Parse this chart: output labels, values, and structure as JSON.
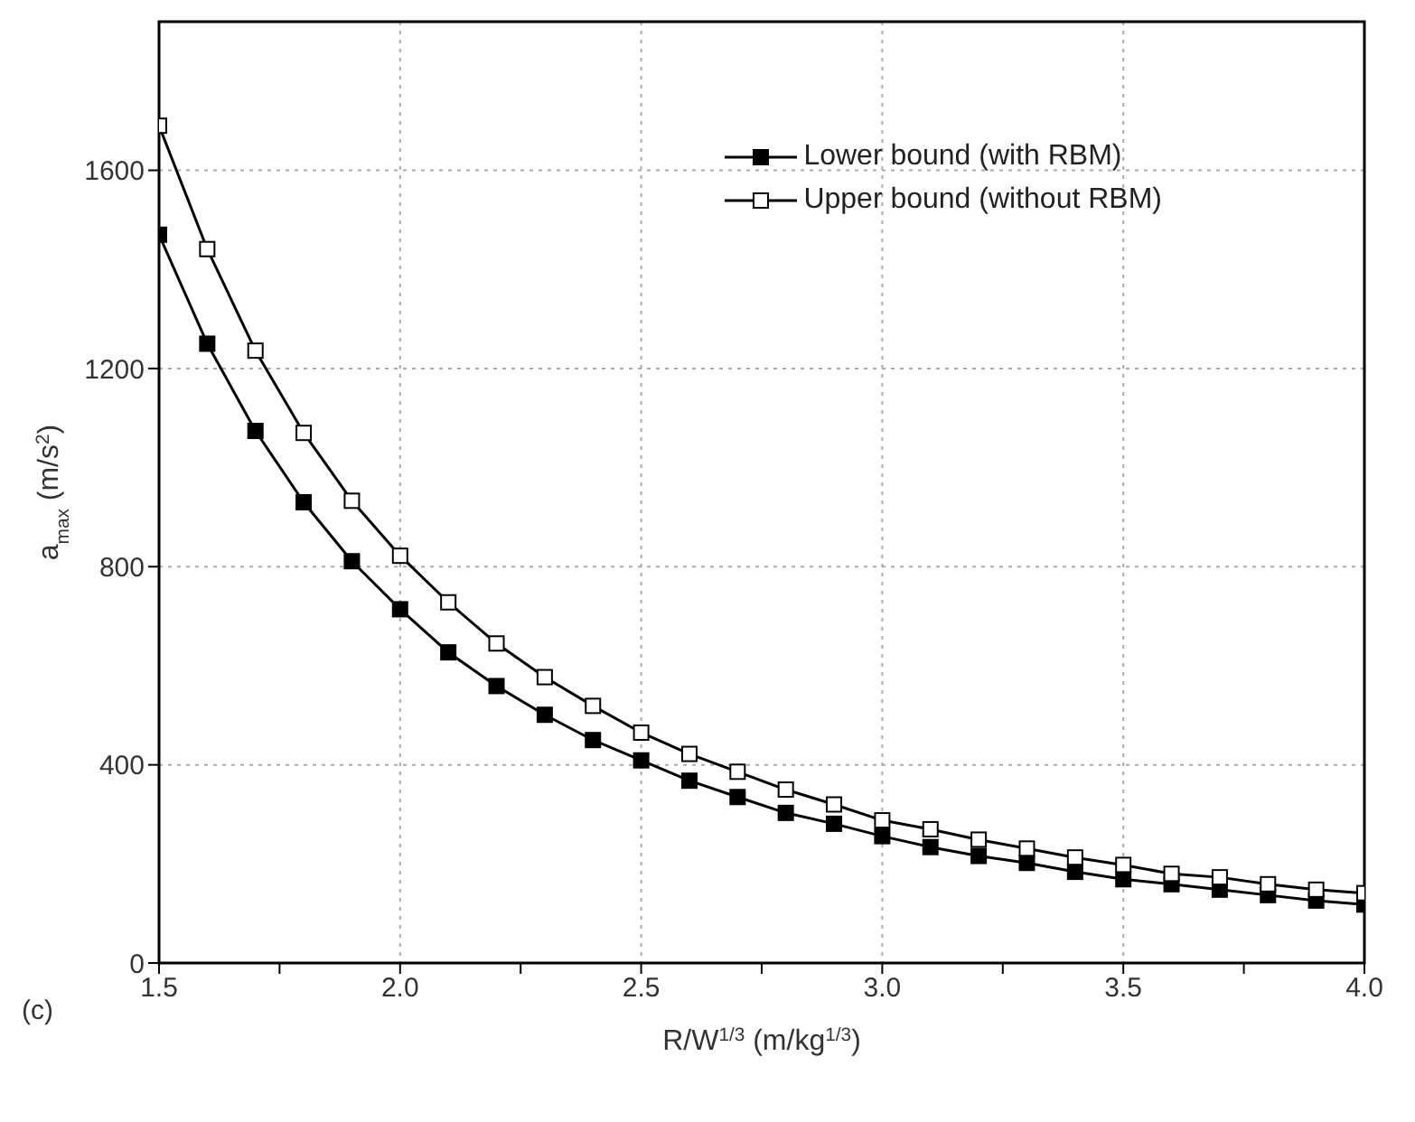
{
  "chart_data": {
    "type": "line",
    "xlabel": "R/W$^{1/3}$ (m/kg$^{1/3}$)",
    "ylabel": "a$_{max}$ (m/s$^{2}$)",
    "annotations": [
      "(c)"
    ],
    "x": [
      1.5,
      1.6,
      1.7,
      1.8,
      1.9,
      2.0,
      2.1,
      2.2,
      2.3,
      2.4,
      2.5,
      2.6,
      2.7,
      2.8,
      2.9,
      3.0,
      3.1,
      3.2,
      3.3,
      3.4,
      3.5,
      3.6,
      3.7,
      3.8,
      3.9,
      4.0
    ],
    "series": [
      {
        "name": "Lower bound (with RBM)",
        "color": "#000000",
        "values": [
          1470,
          1250,
          1074,
          930,
          811,
          714,
          627,
          559,
          501,
          450,
          409,
          368,
          335,
          303,
          281,
          256,
          234,
          216,
          202,
          184,
          169,
          159,
          148,
          137,
          126,
          118
        ]
      },
      {
        "name": "Upper bound (without RBM)",
        "color": "#000000",
        "values": [
          1690,
          1441,
          1236,
          1070,
          933,
          822,
          728,
          645,
          577,
          519,
          465,
          422,
          386,
          350,
          320,
          288,
          270,
          249,
          231,
          213,
          198,
          180,
          173,
          159,
          148,
          141
        ]
      }
    ],
    "xlim": [
      1.5,
      4.0
    ],
    "xticks": [
      {
        "value": 1.5,
        "label": "1.5"
      },
      {
        "value": 1.75,
        "label": null
      },
      {
        "value": 2.0,
        "label": "2.0"
      },
      {
        "value": 2.25,
        "label": null
      },
      {
        "value": 2.5,
        "label": "2.5"
      },
      {
        "value": 2.75,
        "label": null
      },
      {
        "value": 3.0,
        "label": "3.0"
      },
      {
        "value": 3.25,
        "label": null
      },
      {
        "value": 3.5,
        "label": "3.5"
      },
      {
        "value": 3.75,
        "label": null
      },
      {
        "value": 4.0,
        "label": "4.0"
      }
    ],
    "ylim": [
      0,
      1900
    ],
    "yticks": [
      0,
      400,
      800,
      1200,
      1600
    ],
    "grid": true,
    "legend": "top right",
    "marker": "square",
    "line_style": "solid"
  }
}
